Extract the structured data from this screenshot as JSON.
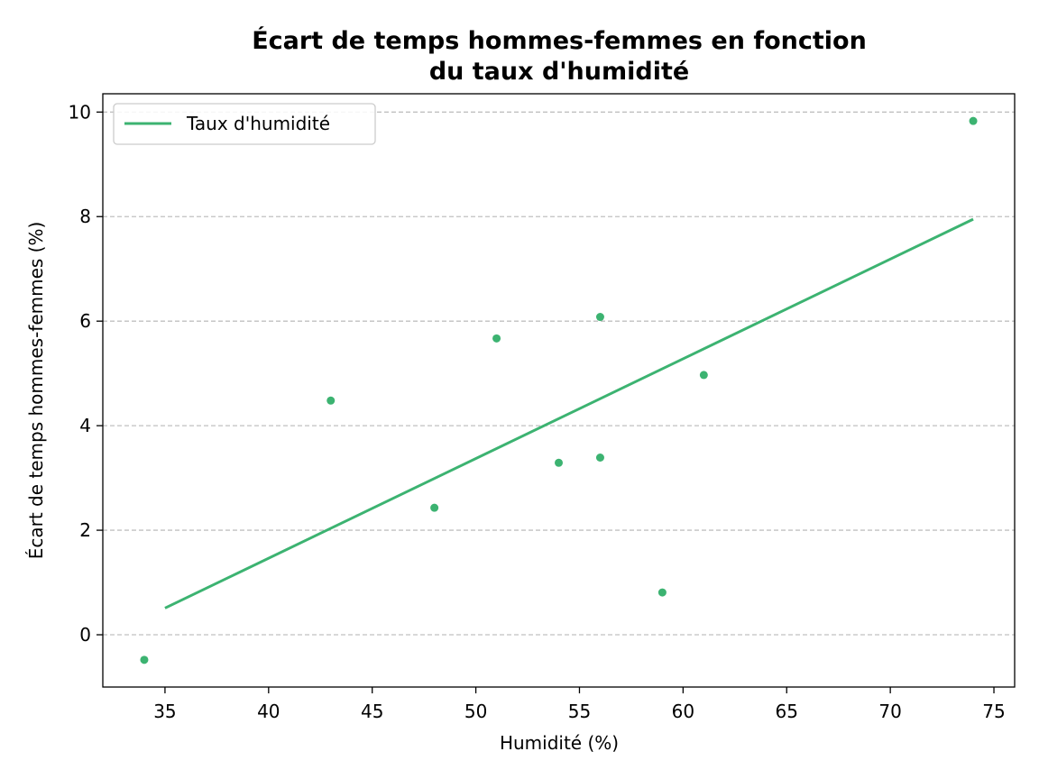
{
  "chart_data": {
    "type": "scatter",
    "title_lines": [
      "Écart de temps hommes-femmes en fonction",
      "du taux d'humidité"
    ],
    "xlabel": "Humidité (%)",
    "ylabel": "Écart de temps hommes-femmes (%)",
    "xlim": [
      32,
      76
    ],
    "ylim": [
      -1,
      10.35
    ],
    "xticks": [
      35,
      40,
      45,
      50,
      55,
      60,
      65,
      70,
      75
    ],
    "yticks": [
      0,
      2,
      4,
      6,
      8,
      10
    ],
    "grid": "y-dashed",
    "legend": {
      "placement": "top-left",
      "entries": [
        "Taux d'humidité"
      ]
    },
    "colors": {
      "series": "#3cb371",
      "grid": "#c0c0c0"
    },
    "points": [
      {
        "x": 34,
        "y": -0.48
      },
      {
        "x": 43,
        "y": 4.48
      },
      {
        "x": 48,
        "y": 2.43
      },
      {
        "x": 51,
        "y": 5.67
      },
      {
        "x": 54,
        "y": 3.29
      },
      {
        "x": 56,
        "y": 6.08
      },
      {
        "x": 56,
        "y": 3.39
      },
      {
        "x": 59,
        "y": 0.81
      },
      {
        "x": 61,
        "y": 4.97
      },
      {
        "x": 74,
        "y": 9.83
      }
    ],
    "trend_line": {
      "name": "Taux d'humidité",
      "x": [
        35,
        74
      ],
      "y": [
        0.51,
        7.95
      ]
    }
  }
}
